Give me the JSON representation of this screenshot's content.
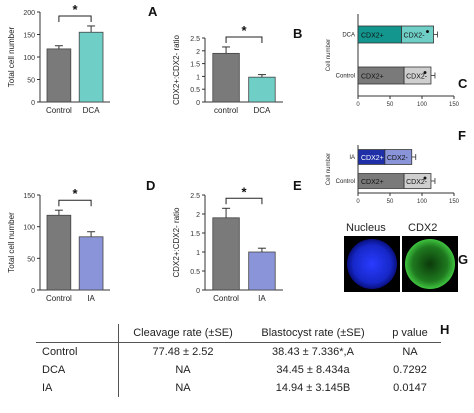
{
  "panel_letters": {
    "A": "A",
    "B": "B",
    "C": "C",
    "D": "D",
    "E": "E",
    "F": "F",
    "G": "G",
    "H": "H"
  },
  "colors": {
    "gray": "#7a7a7a",
    "teal": "#6fcfc7",
    "teal_dark": "#13968e",
    "periwinkle": "#8a95d9",
    "navy": "#1e2fa8",
    "light_gray": "#cfcfcf"
  },
  "chart_data": [
    {
      "id": "A",
      "type": "bar",
      "categories": [
        "Control",
        "DCA"
      ],
      "values": [
        118,
        155
      ],
      "errors": [
        7,
        14
      ],
      "ylabel": "Total cell number",
      "ylim": [
        0,
        200
      ],
      "yticks": [
        0,
        50,
        100,
        150,
        200
      ],
      "significance": "*",
      "colors": [
        "#7a7a7a",
        "#6fcfc7"
      ]
    },
    {
      "id": "B",
      "type": "bar",
      "categories": [
        "control",
        "DCA"
      ],
      "values": [
        1.9,
        0.97
      ],
      "errors": [
        0.25,
        0.1
      ],
      "ylabel": "CDX2+:CDX2- ratio",
      "ylim": [
        0,
        2.5
      ],
      "yticks": [
        0,
        0.5,
        1.0,
        1.5,
        2.0,
        2.5
      ],
      "significance": "*",
      "colors": [
        "#7a7a7a",
        "#6fcfc7"
      ]
    },
    {
      "id": "D",
      "type": "bar",
      "categories": [
        "Control",
        "IA"
      ],
      "values": [
        118,
        84
      ],
      "errors": [
        8,
        8
      ],
      "ylabel": "Total cell number",
      "ylim": [
        0,
        150
      ],
      "yticks": [
        0,
        50,
        100,
        150
      ],
      "significance": "*",
      "colors": [
        "#7a7a7a",
        "#8a95d9"
      ]
    },
    {
      "id": "E",
      "type": "bar",
      "categories": [
        "Control",
        "IA"
      ],
      "values": [
        1.9,
        1.0
      ],
      "errors": [
        0.25,
        0.1
      ],
      "ylabel": "CDX2+:CDX2- ratio",
      "ylim": [
        0,
        2.5
      ],
      "yticks": [
        0,
        0.5,
        1.0,
        1.5,
        2.0,
        2.5
      ],
      "significance": "*",
      "colors": [
        "#7a7a7a",
        "#8a95d9"
      ]
    },
    {
      "id": "C",
      "type": "stacked-bar-horizontal",
      "categories": [
        "DCA",
        "Control"
      ],
      "series": [
        {
          "name": "CDX2+",
          "values": [
            68,
            72
          ]
        },
        {
          "name": "CDX2-",
          "values": [
            50,
            42
          ]
        }
      ],
      "ylabel": "Cell number",
      "xlim": [
        0,
        150
      ],
      "xticks": [
        0,
        50,
        100,
        150
      ],
      "markers": [
        "●",
        "●"
      ]
    },
    {
      "id": "F",
      "type": "stacked-bar-horizontal",
      "categories": [
        "IA",
        "Control"
      ],
      "series": [
        {
          "name": "CDX2+",
          "values": [
            42,
            72
          ]
        },
        {
          "name": "CDX2-",
          "values": [
            42,
            42
          ]
        }
      ],
      "ylabel": "Cell number",
      "xlim": [
        0,
        150
      ],
      "xticks": [
        0,
        50,
        100,
        150
      ],
      "markers": [
        "",
        "●"
      ]
    },
    {
      "id": "H",
      "type": "table",
      "columns": [
        "",
        "Cleavage rate (±SE)",
        "Blastocyst rate (±SE)",
        "p value"
      ],
      "rows": [
        [
          "Control",
          "77.48 ± 2.52",
          "38.43 ± 7.336*,A",
          "NA"
        ],
        [
          "DCA",
          "NA",
          "34.45 ± 8.434a",
          "0.7292"
        ],
        [
          "IA",
          "NA",
          "14.94 ± 3.145B",
          "0.0147"
        ]
      ]
    }
  ],
  "micrograph": {
    "labels": [
      "Nucleus",
      "CDX2"
    ]
  }
}
